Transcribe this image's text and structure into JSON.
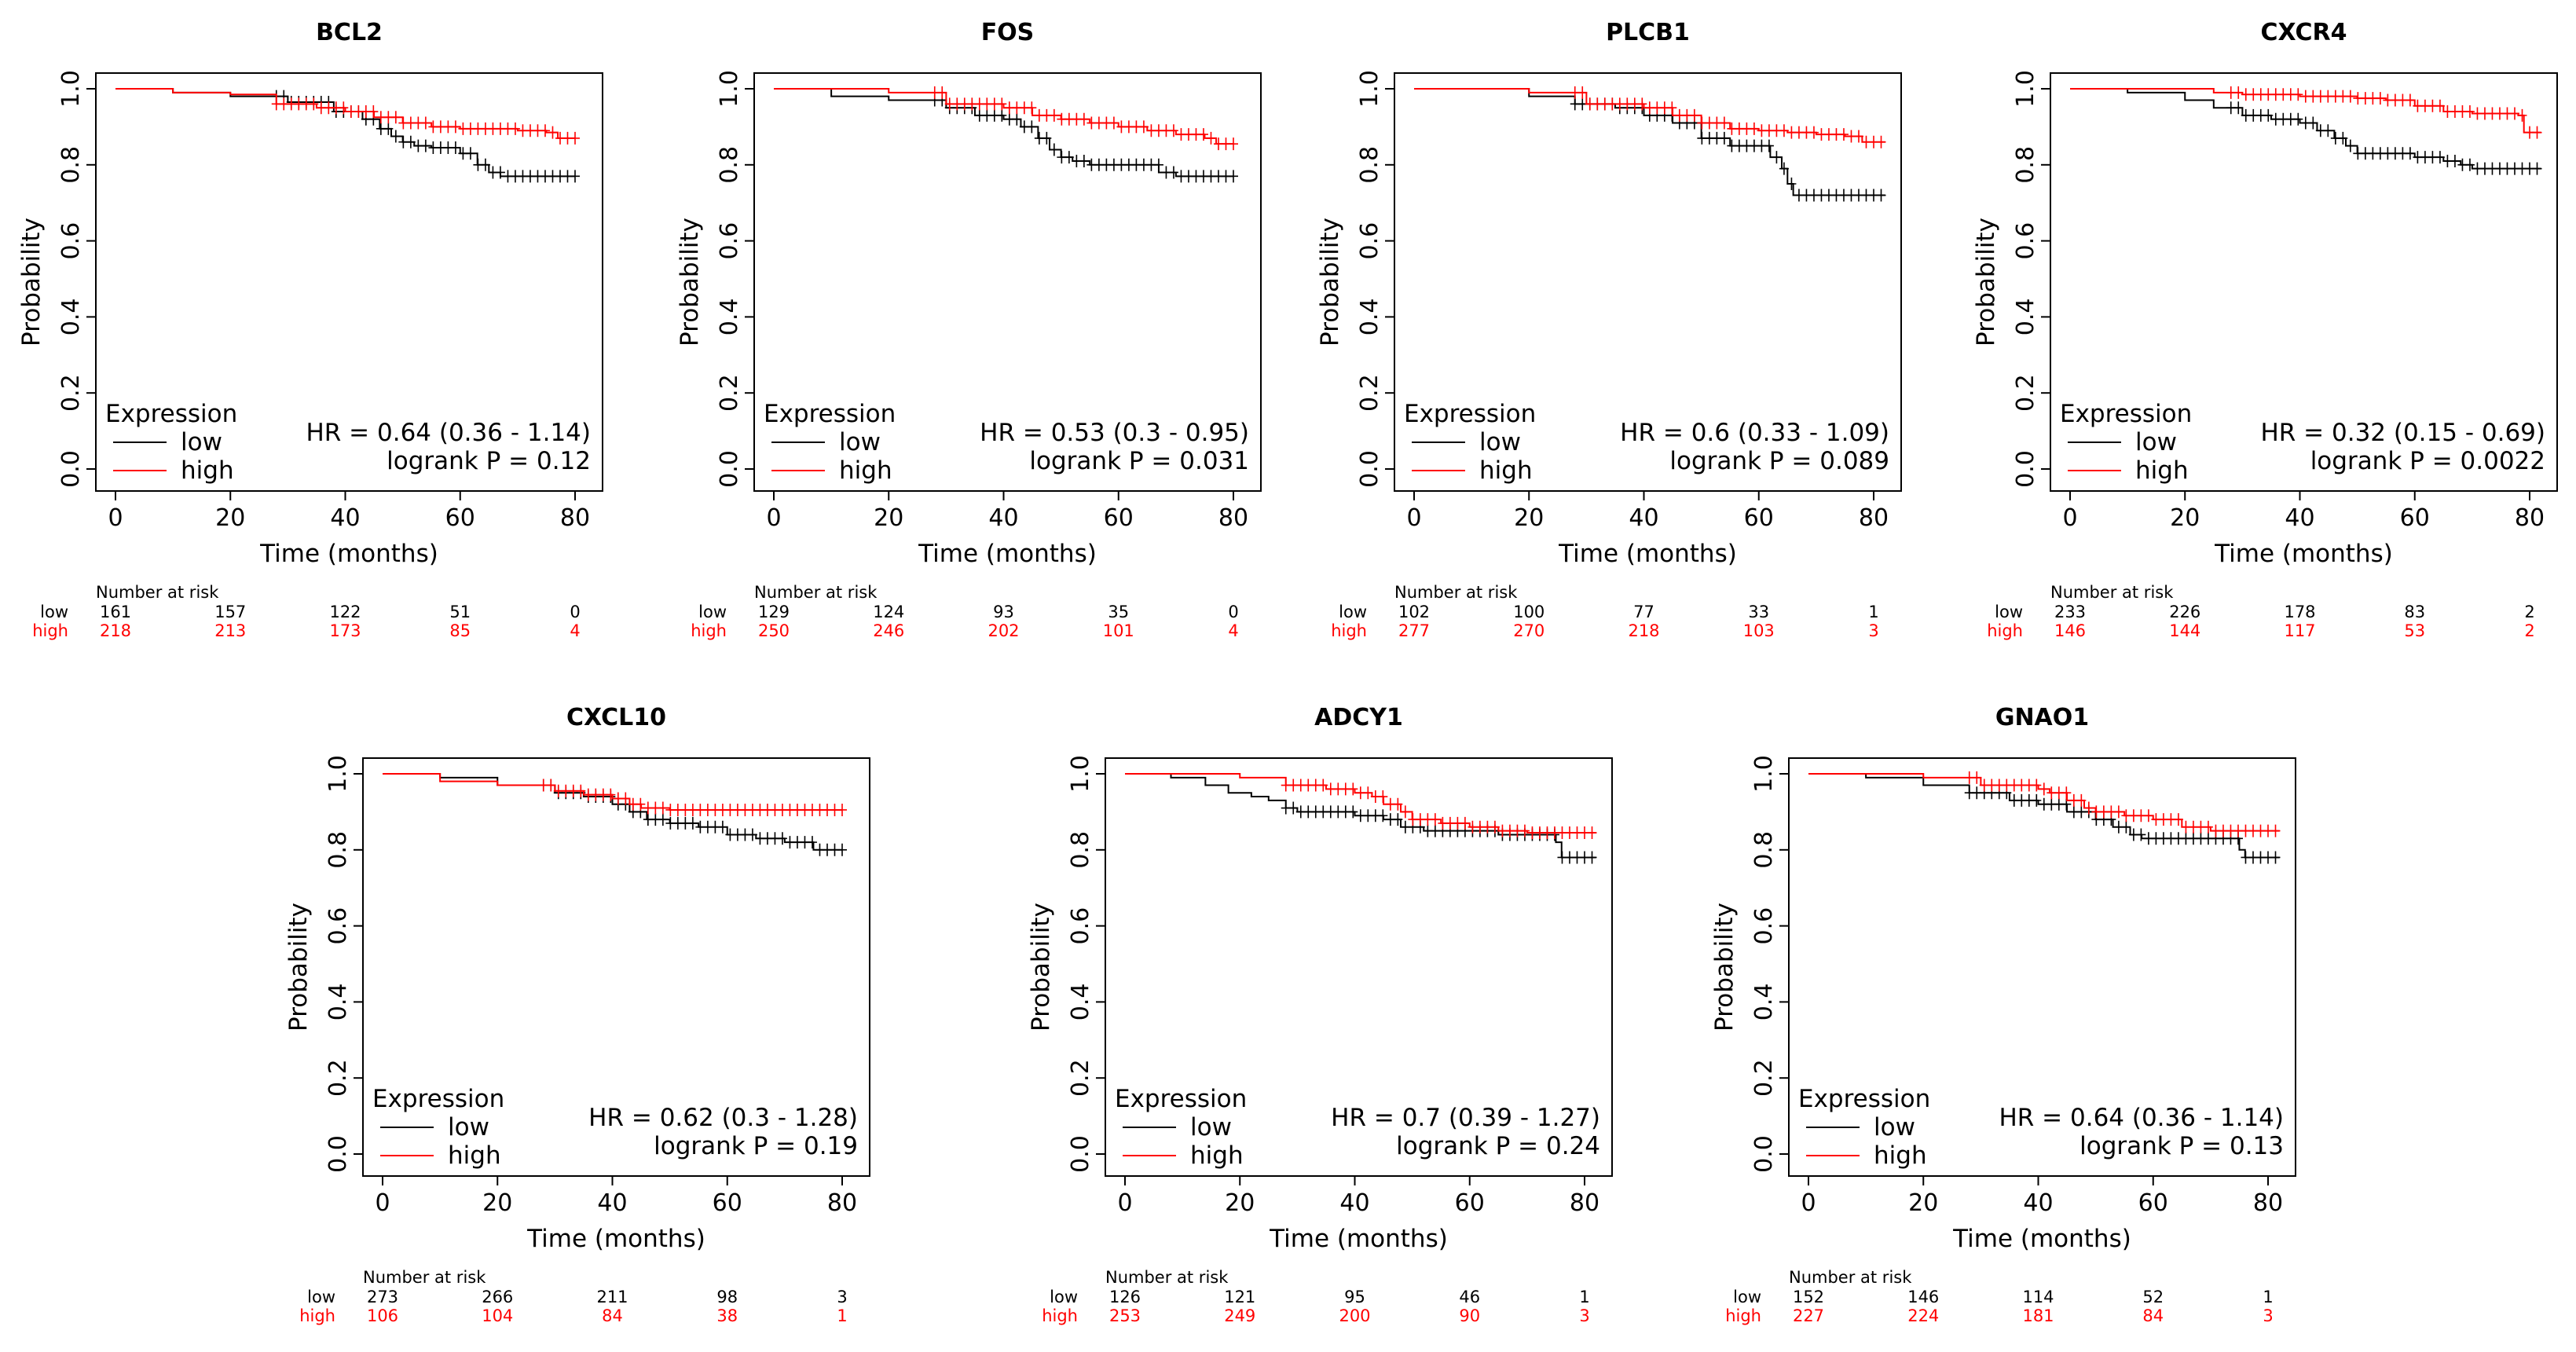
{
  "chart_data": [
    {
      "type": "line",
      "title": "BCL2",
      "xlabel": "Time (months)",
      "ylabel": "Probability",
      "xlim": [
        0,
        80
      ],
      "ylim": [
        0,
        1
      ],
      "xticks": [
        "0",
        "20",
        "40",
        "60",
        "80"
      ],
      "yticks": [
        "0.0",
        "0.2",
        "0.4",
        "0.6",
        "0.8",
        "1.0"
      ],
      "legend_title": "Expression",
      "series": [
        {
          "name": "low",
          "color": "#000000",
          "x": [
            0,
            10,
            20,
            30,
            38,
            43,
            46,
            48,
            50,
            52,
            55,
            60,
            63,
            65,
            67,
            80
          ],
          "y": [
            1,
            0.99,
            0.98,
            0.965,
            0.94,
            0.92,
            0.895,
            0.875,
            0.86,
            0.85,
            0.845,
            0.83,
            0.8,
            0.78,
            0.77,
            0.77
          ]
        },
        {
          "name": "high",
          "color": "#ff0000",
          "x": [
            0,
            10,
            20,
            28,
            35,
            40,
            45,
            50,
            55,
            60,
            70,
            75,
            77,
            80
          ],
          "y": [
            1,
            0.99,
            0.985,
            0.96,
            0.95,
            0.94,
            0.925,
            0.91,
            0.9,
            0.895,
            0.89,
            0.885,
            0.87,
            0.87
          ]
        }
      ],
      "hr_text": "HR = 0.64 (0.36 - 1.14)",
      "p_text": "logrank P = 0.12",
      "risk": {
        "heading": "Number at risk",
        "low_label": "low",
        "high_label": "high",
        "low": [
          "161",
          "157",
          "122",
          "51",
          "0"
        ],
        "high": [
          "218",
          "213",
          "173",
          "85",
          "4"
        ]
      }
    },
    {
      "type": "line",
      "title": "FOS",
      "xlabel": "Time (months)",
      "ylabel": "Probability",
      "xlim": [
        0,
        80
      ],
      "ylim": [
        0,
        1
      ],
      "xticks": [
        "0",
        "20",
        "40",
        "60",
        "80"
      ],
      "yticks": [
        "0.0",
        "0.2",
        "0.4",
        "0.6",
        "0.8",
        "1.0"
      ],
      "legend_title": "Expression",
      "series": [
        {
          "name": "low",
          "color": "#000000",
          "x": [
            0,
            10,
            20,
            30,
            35,
            40,
            43,
            46,
            48,
            50,
            52,
            55,
            65,
            67,
            70,
            80
          ],
          "y": [
            1,
            0.98,
            0.97,
            0.95,
            0.93,
            0.92,
            0.9,
            0.87,
            0.84,
            0.82,
            0.81,
            0.8,
            0.8,
            0.78,
            0.77,
            0.77
          ]
        },
        {
          "name": "high",
          "color": "#ff0000",
          "x": [
            0,
            20,
            30,
            40,
            45,
            50,
            55,
            60,
            65,
            70,
            75,
            77,
            80
          ],
          "y": [
            1,
            0.99,
            0.96,
            0.95,
            0.93,
            0.92,
            0.91,
            0.9,
            0.89,
            0.88,
            0.87,
            0.855,
            0.855
          ]
        }
      ],
      "hr_text": "HR = 0.53 (0.3 - 0.95)",
      "p_text": "logrank P = 0.031",
      "risk": {
        "heading": "Number at risk",
        "low_label": "low",
        "high_label": "high",
        "low": [
          "129",
          "124",
          "93",
          "35",
          "0"
        ],
        "high": [
          "250",
          "246",
          "202",
          "101",
          "4"
        ]
      }
    },
    {
      "type": "line",
      "title": "PLCB1",
      "xlabel": "Time (months)",
      "ylabel": "Probability",
      "xlim": [
        0,
        80
      ],
      "ylim": [
        0,
        1
      ],
      "xticks": [
        "0",
        "20",
        "40",
        "60",
        "80"
      ],
      "yticks": [
        "0.0",
        "0.2",
        "0.4",
        "0.6",
        "0.8",
        "1.0"
      ],
      "legend_title": "Expression",
      "series": [
        {
          "name": "low",
          "color": "#000000",
          "x": [
            0,
            20,
            28,
            35,
            40,
            45,
            50,
            55,
            60,
            62,
            64,
            65,
            66,
            80,
            82
          ],
          "y": [
            1,
            0.98,
            0.96,
            0.95,
            0.93,
            0.91,
            0.87,
            0.85,
            0.85,
            0.82,
            0.79,
            0.75,
            0.72,
            0.72,
            0.72
          ]
        },
        {
          "name": "high",
          "color": "#ff0000",
          "x": [
            0,
            20,
            30,
            40,
            45,
            50,
            55,
            60,
            65,
            70,
            75,
            78,
            82
          ],
          "y": [
            1,
            0.99,
            0.96,
            0.95,
            0.93,
            0.91,
            0.895,
            0.89,
            0.885,
            0.88,
            0.875,
            0.86,
            0.86
          ]
        }
      ],
      "hr_text": "HR = 0.6 (0.33 - 1.09)",
      "p_text": "logrank P = 0.089",
      "risk": {
        "heading": "Number at risk",
        "low_label": "low",
        "high_label": "high",
        "low": [
          "102",
          "100",
          "77",
          "33",
          "1"
        ],
        "high": [
          "277",
          "270",
          "218",
          "103",
          "3"
        ]
      }
    },
    {
      "type": "line",
      "title": "CXCR4",
      "xlabel": "Time (months)",
      "ylabel": "Probability",
      "xlim": [
        0,
        80
      ],
      "ylim": [
        0,
        1
      ],
      "xticks": [
        "0",
        "20",
        "40",
        "60",
        "80"
      ],
      "yticks": [
        "0.0",
        "0.2",
        "0.4",
        "0.6",
        "0.8",
        "1.0"
      ],
      "legend_title": "Expression",
      "series": [
        {
          "name": "low",
          "color": "#000000",
          "x": [
            0,
            10,
            20,
            25,
            30,
            35,
            40,
            43,
            46,
            48,
            50,
            55,
            60,
            65,
            68,
            70,
            80,
            82
          ],
          "y": [
            1,
            0.99,
            0.97,
            0.95,
            0.93,
            0.92,
            0.91,
            0.89,
            0.87,
            0.85,
            0.83,
            0.83,
            0.82,
            0.81,
            0.8,
            0.79,
            0.79,
            0.79
          ]
        },
        {
          "name": "high",
          "color": "#ff0000",
          "x": [
            0,
            25,
            30,
            40,
            50,
            55,
            60,
            65,
            70,
            75,
            78,
            79,
            82
          ],
          "y": [
            1,
            0.99,
            0.985,
            0.98,
            0.975,
            0.97,
            0.955,
            0.94,
            0.935,
            0.935,
            0.93,
            0.885,
            0.885
          ]
        }
      ],
      "hr_text": "HR = 0.32 (0.15 - 0.69)",
      "p_text": "logrank P = 0.0022",
      "risk": {
        "heading": "Number at risk",
        "low_label": "low",
        "high_label": "high",
        "low": [
          "233",
          "226",
          "178",
          "83",
          "2"
        ],
        "high": [
          "146",
          "144",
          "117",
          "53",
          "2"
        ]
      }
    },
    {
      "type": "line",
      "title": "CXCL10",
      "xlabel": "Time (months)",
      "ylabel": "Probability",
      "xlim": [
        0,
        80
      ],
      "ylim": [
        0,
        1
      ],
      "xticks": [
        "0",
        "20",
        "40",
        "60",
        "80"
      ],
      "yticks": [
        "0.0",
        "0.2",
        "0.4",
        "0.6",
        "0.8",
        "1.0"
      ],
      "legend_title": "Expression",
      "series": [
        {
          "name": "low",
          "color": "#000000",
          "x": [
            0,
            10,
            20,
            30,
            35,
            40,
            43,
            46,
            50,
            55,
            60,
            65,
            70,
            75,
            80
          ],
          "y": [
            1,
            0.99,
            0.97,
            0.95,
            0.94,
            0.92,
            0.9,
            0.88,
            0.87,
            0.86,
            0.84,
            0.83,
            0.82,
            0.8,
            0.8
          ]
        },
        {
          "name": "high",
          "color": "#ff0000",
          "x": [
            0,
            10,
            20,
            30,
            35,
            40,
            43,
            45,
            50,
            80
          ],
          "y": [
            1,
            0.98,
            0.97,
            0.955,
            0.945,
            0.935,
            0.92,
            0.91,
            0.905,
            0.905
          ]
        }
      ],
      "hr_text": "HR = 0.62 (0.3 - 1.28)",
      "p_text": "logrank P = 0.19",
      "risk": {
        "heading": "Number at risk",
        "low_label": "low",
        "high_label": "high",
        "low": [
          "273",
          "266",
          "211",
          "98",
          "3"
        ],
        "high": [
          "106",
          "104",
          "84",
          "38",
          "1"
        ]
      }
    },
    {
      "type": "line",
      "title": "ADCY1",
      "xlabel": "Time (months)",
      "ylabel": "Probability",
      "xlim": [
        0,
        80
      ],
      "ylim": [
        0,
        1
      ],
      "xticks": [
        "0",
        "20",
        "40",
        "60",
        "80"
      ],
      "yticks": [
        "0.0",
        "0.2",
        "0.4",
        "0.6",
        "0.8",
        "1.0"
      ],
      "legend_title": "Expression",
      "series": [
        {
          "name": "low",
          "color": "#000000",
          "x": [
            0,
            8,
            14,
            18,
            22,
            25,
            28,
            30,
            40,
            45,
            48,
            52,
            60,
            65,
            70,
            74,
            75,
            76,
            82
          ],
          "y": [
            1,
            0.99,
            0.97,
            0.95,
            0.94,
            0.93,
            0.91,
            0.9,
            0.89,
            0.88,
            0.86,
            0.85,
            0.85,
            0.84,
            0.84,
            0.84,
            0.82,
            0.78,
            0.78
          ]
        },
        {
          "name": "high",
          "color": "#ff0000",
          "x": [
            0,
            20,
            28,
            35,
            40,
            43,
            45,
            48,
            50,
            55,
            60,
            65,
            70,
            75,
            82
          ],
          "y": [
            1,
            0.99,
            0.97,
            0.96,
            0.95,
            0.94,
            0.92,
            0.9,
            0.88,
            0.87,
            0.86,
            0.85,
            0.845,
            0.845,
            0.845
          ]
        }
      ],
      "hr_text": "HR = 0.7 (0.39 - 1.27)",
      "p_text": "logrank P = 0.24",
      "risk": {
        "heading": "Number at risk",
        "low_label": "low",
        "high_label": "high",
        "low": [
          "126",
          "121",
          "95",
          "46",
          "1"
        ],
        "high": [
          "253",
          "249",
          "200",
          "90",
          "3"
        ]
      }
    },
    {
      "type": "line",
      "title": "GNAO1",
      "xlabel": "Time (months)",
      "ylabel": "Probability",
      "xlim": [
        0,
        80
      ],
      "ylim": [
        0,
        1
      ],
      "xticks": [
        "0",
        "20",
        "40",
        "60",
        "80"
      ],
      "yticks": [
        "0.0",
        "0.2",
        "0.4",
        "0.6",
        "0.8",
        "1.0"
      ],
      "legend_title": "Expression",
      "series": [
        {
          "name": "low",
          "color": "#000000",
          "x": [
            0,
            10,
            20,
            28,
            35,
            40,
            45,
            50,
            53,
            56,
            58,
            65,
            70,
            74,
            75,
            76,
            82
          ],
          "y": [
            1,
            0.99,
            0.97,
            0.95,
            0.93,
            0.92,
            0.9,
            0.88,
            0.86,
            0.84,
            0.83,
            0.83,
            0.83,
            0.83,
            0.8,
            0.78,
            0.78
          ]
        },
        {
          "name": "high",
          "color": "#ff0000",
          "x": [
            0,
            20,
            30,
            40,
            42,
            45,
            48,
            50,
            55,
            60,
            65,
            70,
            75,
            82
          ],
          "y": [
            1,
            0.99,
            0.97,
            0.96,
            0.95,
            0.93,
            0.91,
            0.9,
            0.89,
            0.88,
            0.86,
            0.85,
            0.85,
            0.85
          ]
        }
      ],
      "hr_text": "HR = 0.64 (0.36 - 1.14)",
      "p_text": "logrank P = 0.13",
      "risk": {
        "heading": "Number at risk",
        "low_label": "low",
        "high_label": "high",
        "low": [
          "152",
          "146",
          "114",
          "52",
          "1"
        ],
        "high": [
          "227",
          "224",
          "181",
          "84",
          "3"
        ]
      }
    }
  ]
}
